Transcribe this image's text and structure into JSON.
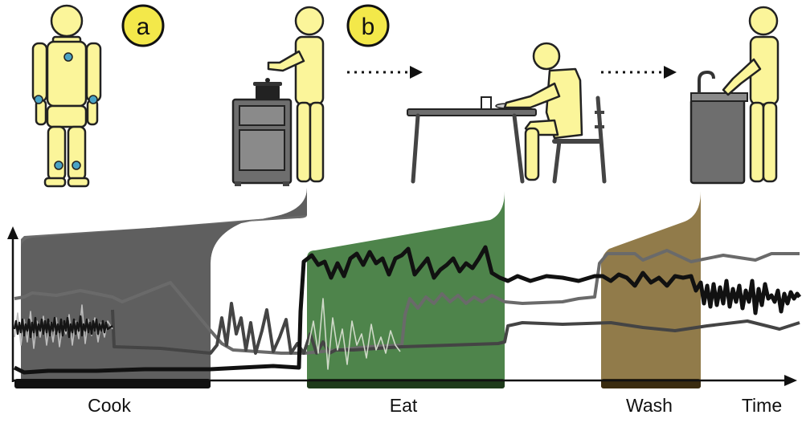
{
  "badges": {
    "a": "a",
    "b": "b"
  },
  "labels": {
    "cook": "Cook",
    "eat": "Eat",
    "wash": "Wash",
    "time": "Time"
  },
  "colors": {
    "cook_band": "#5f5f5f",
    "eat_band": "#3f7a3c",
    "wash_band": "#8b7440",
    "figure": "#fbf59a",
    "sensor": "#4aa3c4",
    "furniture": "#6e6e6e",
    "line_dark": "#111111",
    "line_mid": "#444444",
    "line_light": "#6a6a6a"
  },
  "icons": [
    "figure-with-sensors-icon",
    "cooking-person-icon",
    "stove-icon",
    "pot-icon",
    "eating-person-icon",
    "table-icon",
    "chair-icon",
    "washing-person-icon",
    "sink-icon",
    "faucet-icon",
    "dotted-arrow-icon"
  ]
}
